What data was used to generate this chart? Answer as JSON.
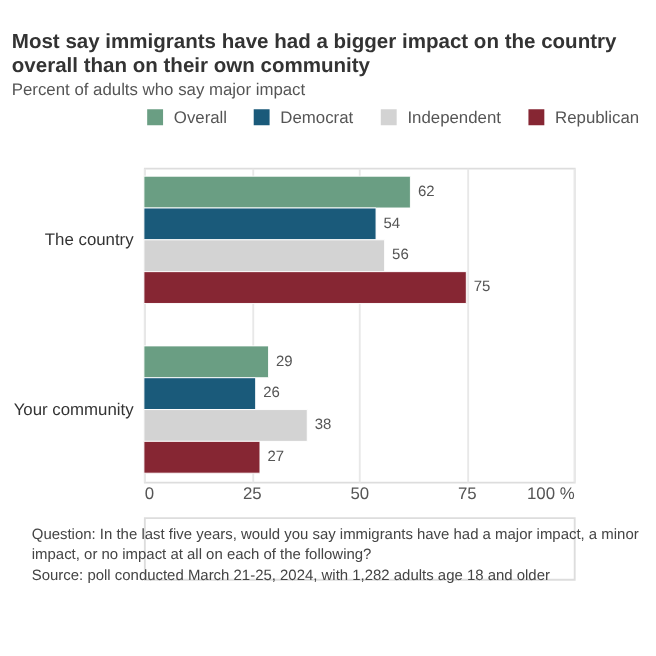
{
  "chart_data": {
    "type": "bar",
    "orientation": "horizontal",
    "title": "Most say immigrants have had a bigger impact on the country overall than on their own community",
    "subtitle": "Percent of adults who say major impact",
    "categories": [
      "The country",
      "Your community"
    ],
    "series": [
      {
        "name": "Overall",
        "color": "#6a9e83",
        "values": [
          62,
          29
        ]
      },
      {
        "name": "Democrat",
        "color": "#1a5a7a",
        "values": [
          54,
          26
        ]
      },
      {
        "name": "Independent",
        "color": "#d3d3d3",
        "values": [
          56,
          38
        ]
      },
      {
        "name": "Republican",
        "color": "#862633",
        "values": [
          75,
          27
        ]
      }
    ],
    "xlim": [
      0,
      100
    ],
    "xticks": [
      0,
      25,
      50,
      75,
      {
        "value": 100,
        "label": "100 %"
      }
    ],
    "grid": "x",
    "legend": "top",
    "data_labels": true,
    "annotations": [
      "Question: In the last five years, would you say immigrants have had a major impact, a minor impact, or no impact at all on each of the following?",
      "Source: poll conducted March 21-25, 2024, with 1,282 adults age 18 and older"
    ]
  }
}
